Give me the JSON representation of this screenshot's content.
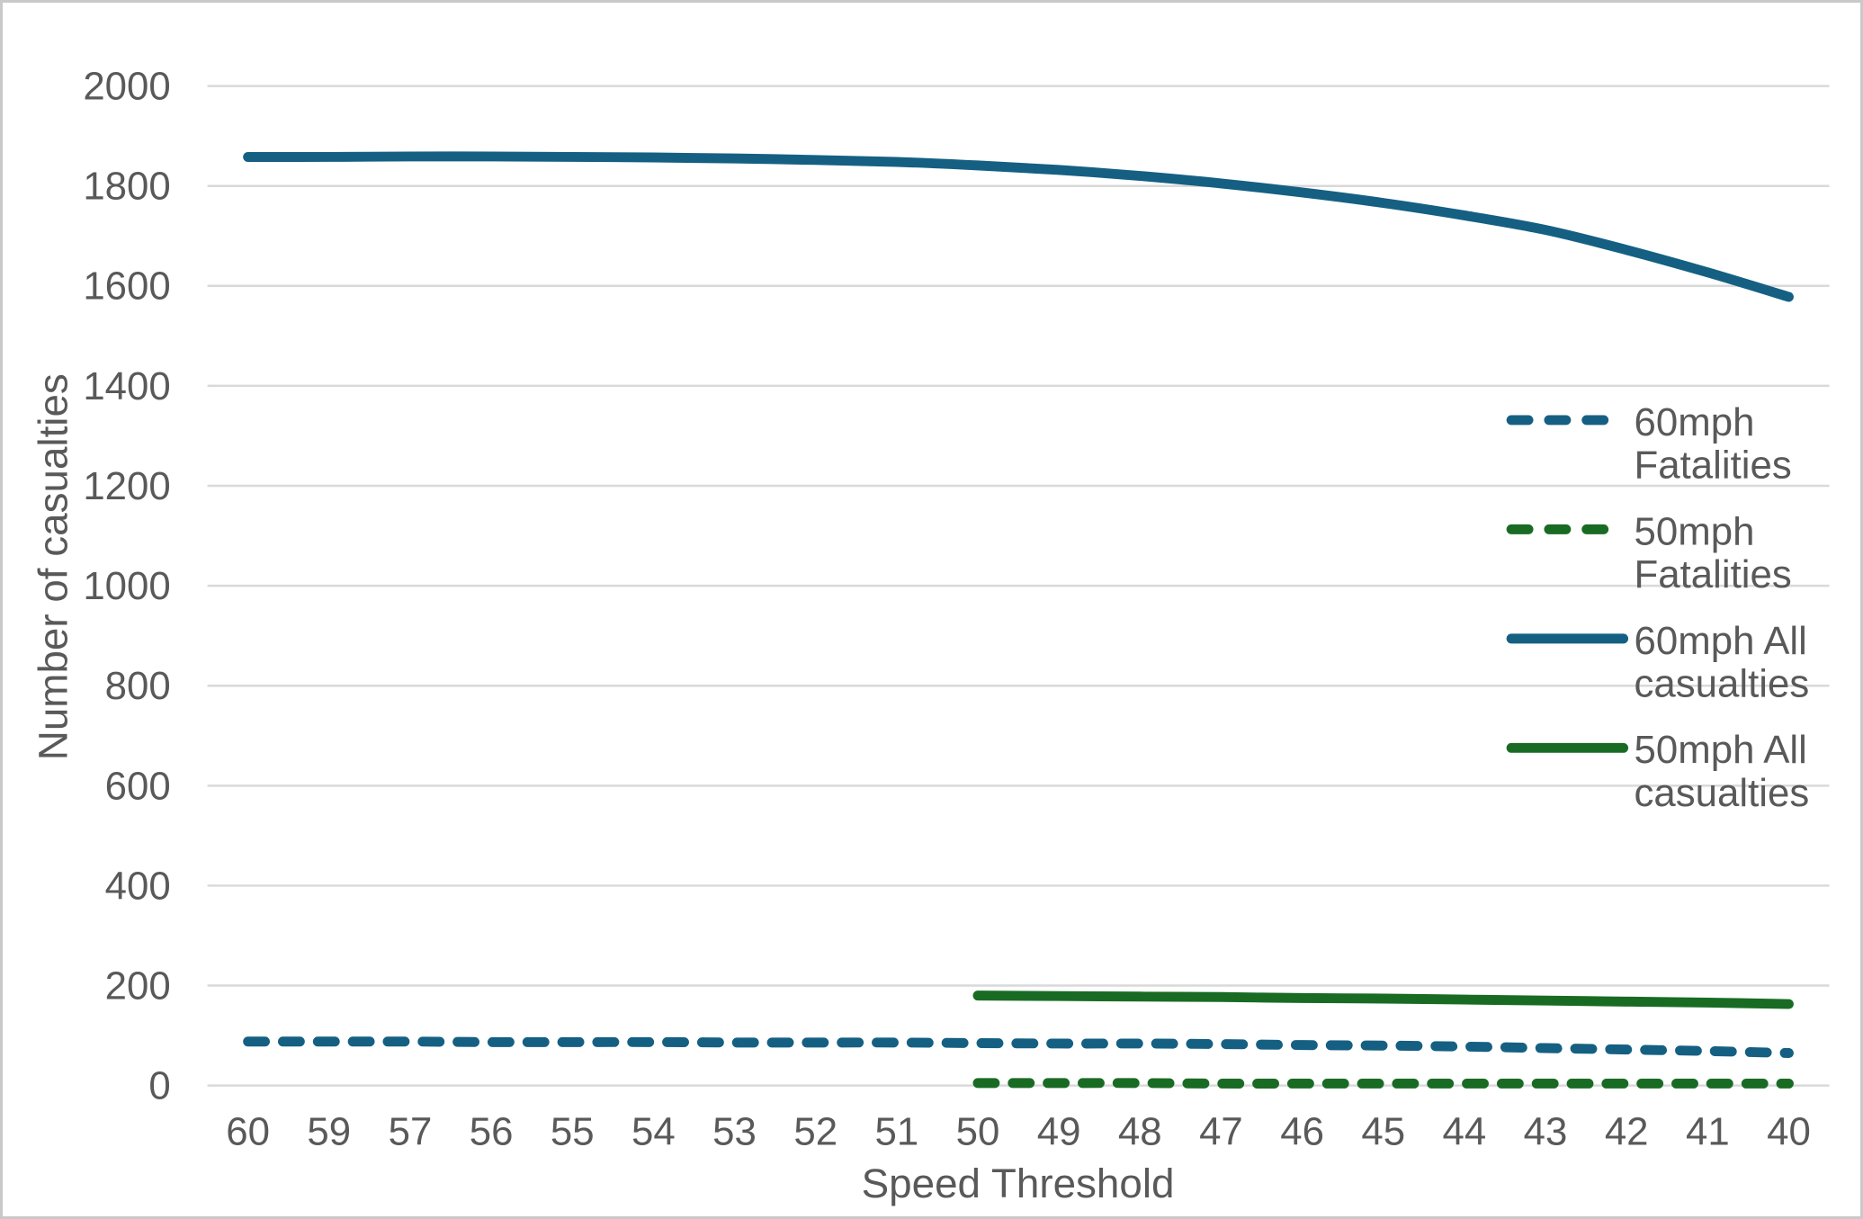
{
  "window": {
    "background": "#FFFFFF",
    "frame_border_color": "#C9C9C9"
  },
  "colors": {
    "series_blue": "#156082",
    "series_green": "#196B24",
    "axis_text": "#595959",
    "gridline": "#D9D9D9"
  },
  "chart_data": {
    "type": "line",
    "title": "",
    "xlabel": "Speed Threshold",
    "ylabel": "Number of casualties",
    "x_tick_labels": [
      "60",
      "59",
      "57",
      "56",
      "55",
      "54",
      "53",
      "52",
      "51",
      "50",
      "49",
      "48",
      "47",
      "46",
      "45",
      "44",
      "43",
      "42",
      "41",
      "40"
    ],
    "y_ticks": [
      0,
      200,
      400,
      600,
      800,
      1000,
      1200,
      1400,
      1600,
      1800,
      2000
    ],
    "ylim": [
      0,
      2000
    ],
    "grid": true,
    "legend_position": "right-overlay",
    "series": [
      {
        "name": "60mph Fatalities",
        "style": "dashed",
        "color": "#156082",
        "values": [
          88,
          88,
          88,
          87,
          87,
          87,
          86,
          86,
          86,
          85,
          84,
          84,
          83,
          81,
          80,
          78,
          75,
          72,
          69,
          65
        ]
      },
      {
        "name": "50mph Fatalities",
        "style": "dashed",
        "color": "#196B24",
        "values": [
          null,
          null,
          null,
          null,
          null,
          null,
          null,
          null,
          null,
          5,
          5,
          5,
          4,
          4,
          4,
          4,
          4,
          4,
          4,
          4
        ]
      },
      {
        "name": "60mph All casualties",
        "style": "solid",
        "color": "#156082",
        "values": [
          1858,
          1858,
          1859,
          1859,
          1858,
          1857,
          1855,
          1852,
          1848,
          1841,
          1832,
          1820,
          1805,
          1787,
          1766,
          1741,
          1712,
          1672,
          1627,
          1578
        ]
      },
      {
        "name": "50mph All casualties",
        "style": "solid",
        "color": "#196B24",
        "values": [
          null,
          null,
          null,
          null,
          null,
          null,
          null,
          null,
          null,
          180,
          179,
          178,
          177,
          175,
          174,
          172,
          170,
          168,
          166,
          163
        ]
      }
    ],
    "legend": [
      {
        "series": 0,
        "lines": [
          "60mph",
          "Fatalities"
        ]
      },
      {
        "series": 1,
        "lines": [
          "50mph",
          "Fatalities"
        ]
      },
      {
        "series": 2,
        "lines": [
          "60mph All",
          "casualties"
        ]
      },
      {
        "series": 3,
        "lines": [
          "50mph All",
          "casualties"
        ]
      }
    ]
  }
}
